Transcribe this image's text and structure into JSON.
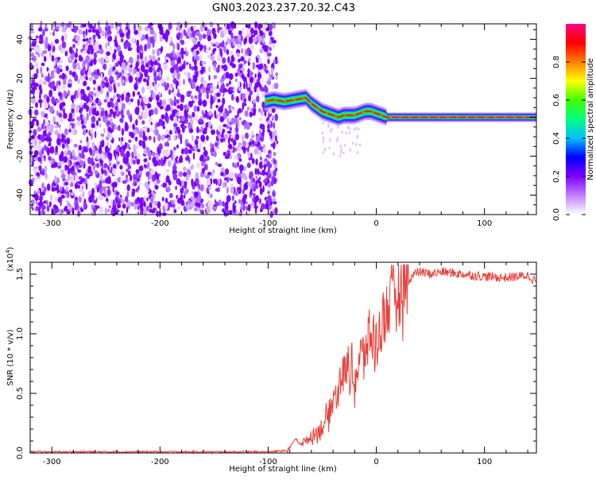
{
  "title": "GN03.2023.237.20.32.C43",
  "chart_data": [
    {
      "type": "heatmap",
      "xlabel": "Height of straight line (km)",
      "ylabel": "Frequency (Hz)",
      "xlim": [
        -320,
        148
      ],
      "ylim": [
        -50,
        48
      ],
      "xticks": [
        -300,
        -200,
        -100,
        0,
        100
      ],
      "yticks": [
        -40,
        -20,
        0,
        20,
        40
      ],
      "colorbar": {
        "label": "Normalized spectral amplitude",
        "range": [
          0,
          1
        ],
        "ticks": [
          "0.0",
          "0.2",
          "0.4",
          "0.6",
          "0.8"
        ],
        "colors": [
          "#ffffff",
          "#c080ff",
          "#8000ff",
          "#0000ff",
          "#00c0ff",
          "#00ff80",
          "#40ff00",
          "#ffff00",
          "#ff8000",
          "#ff0000",
          "#ff0080"
        ]
      },
      "noise_region": {
        "x_range": [
          -320,
          -92
        ],
        "freq_range": [
          -50,
          48
        ],
        "amplitude": 0.15
      },
      "ridge": {
        "x": [
          -103,
          -95,
          -85,
          -75,
          -65,
          -60,
          -55,
          -50,
          -45,
          -40,
          -35,
          -30,
          -25,
          -20,
          -15,
          -10,
          -5,
          0,
          5,
          10,
          20,
          40,
          60,
          80,
          100,
          120,
          148
        ],
        "freq": [
          8,
          9,
          8,
          9,
          10,
          7,
          5,
          3,
          2,
          1,
          0,
          1,
          1,
          1,
          2,
          3,
          3,
          2,
          1,
          0,
          0,
          0,
          0,
          0,
          0,
          0,
          0
        ]
      }
    },
    {
      "type": "line",
      "xlabel": "Height of straight line (km)",
      "ylabel": "SNR (10 * v/v)",
      "multiplier": "(x10",
      "multiplier_exp": "4",
      "multiplier_close": ")",
      "xlim": [
        -320,
        148
      ],
      "ylim": [
        0,
        1.6
      ],
      "xticks": [
        -300,
        -200,
        -100,
        0,
        100
      ],
      "yticks": [
        "0.0",
        "0.5",
        "1.0",
        "1.5"
      ],
      "color": "#e8403a",
      "series": [
        {
          "x": [
            -320,
            -200,
            -100,
            -82,
            -75,
            -70,
            -65,
            -60,
            -55,
            -50,
            -45,
            -40,
            -35,
            -30,
            -25,
            -20,
            -15,
            -10,
            -5,
            0,
            5,
            10,
            15,
            20,
            25,
            30,
            35,
            40,
            50,
            60,
            80,
            100,
            120,
            140,
            148
          ],
          "y": [
            0.01,
            0.01,
            0.01,
            0.02,
            0.12,
            0.08,
            0.1,
            0.14,
            0.18,
            0.22,
            0.3,
            0.45,
            0.55,
            0.7,
            0.72,
            0.6,
            0.8,
            0.85,
            1.0,
            0.9,
            1.1,
            1.2,
            1.3,
            1.35,
            1.4,
            1.45,
            1.5,
            1.52,
            1.5,
            1.52,
            1.5,
            1.48,
            1.47,
            1.49,
            1.44
          ]
        }
      ]
    }
  ]
}
